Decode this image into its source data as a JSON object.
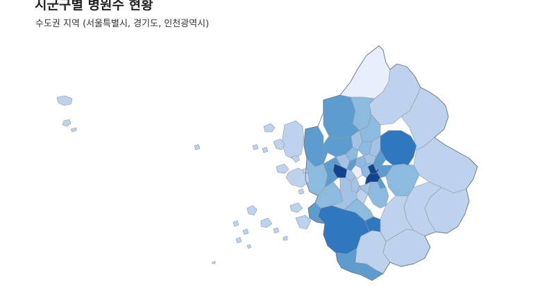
{
  "title": "시군구별 병원수 현황",
  "subtitle": "수도권 지역 (서울특별시, 경기도, 인천광역시)",
  "colors": {
    "lightest": "#e8eefb",
    "light": "#bdd2ec",
    "light_mid": "#a4c3e4",
    "mid": "#8dbadf",
    "mid_dark": "#5d9ccf",
    "dark": "#2f77bf",
    "darker": "#2a68b3",
    "darkest": "#12438e",
    "stroke": "#8e98a6"
  }
}
